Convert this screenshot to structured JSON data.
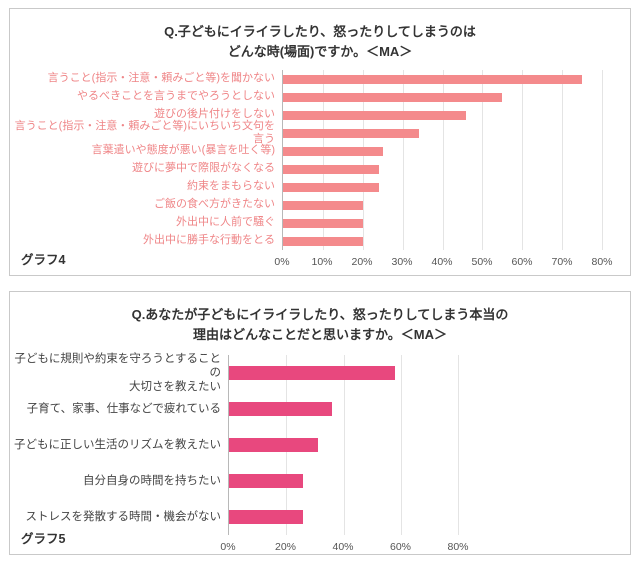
{
  "chart_data": [
    {
      "type": "bar",
      "orientation": "horizontal",
      "title_lines": [
        "Q.子どもにイライラしたり、怒ったりしてしまうのは",
        "どんな時(場面)ですか。＜MA＞"
      ],
      "footer_label": "グラフ4",
      "categories": [
        "言うこと(指示・注意・頼みごと等)を聞かない",
        "やるべきことを言うまでやろうとしない",
        "遊びの後片付けをしない",
        "言うこと(指示・注意・頼みごと等)にいちいち文句を言う",
        "言葉遣いや態度が悪い(暴言を吐く等)",
        "遊びに夢中で際限がなくなる",
        "約束をまもらない",
        "ご飯の食べ方がきたない",
        "外出中に人前で騒ぐ",
        "外出中に勝手な行動をとる"
      ],
      "values": [
        75,
        55,
        46,
        34,
        25,
        24,
        24,
        20,
        20,
        20
      ],
      "xlim": [
        0,
        80
      ],
      "x_ticks": [
        "0%",
        "10%",
        "20%",
        "30%",
        "40%",
        "50%",
        "60%",
        "70%",
        "80%"
      ],
      "bar_color": "#f48a8c",
      "label_color": "#ef8587",
      "grid": true,
      "legend": "none"
    },
    {
      "type": "bar",
      "orientation": "horizontal",
      "title_lines": [
        "Q.あなたが子どもにイライラしたり、怒ったりしてしまう本当の",
        "理由はどんなことだと思いますか。＜MA＞"
      ],
      "footer_label": "グラフ5",
      "categories": [
        "子どもに規則や約束を守ろうとすることの\n大切さを教えたい",
        "子育て、家事、仕事などで疲れている",
        "子どもに正しい生活のリズムを教えたい",
        "自分自身の時間を持ちたい",
        "ストレスを発散する時間・機会がない"
      ],
      "values": [
        58,
        36,
        31,
        26,
        26
      ],
      "xlim": [
        0,
        80
      ],
      "x_ticks": [
        "0%",
        "20%",
        "40%",
        "60%",
        "80%"
      ],
      "bar_color": "#e8487e",
      "label_color": "#444444",
      "grid": true,
      "legend": "none"
    }
  ]
}
